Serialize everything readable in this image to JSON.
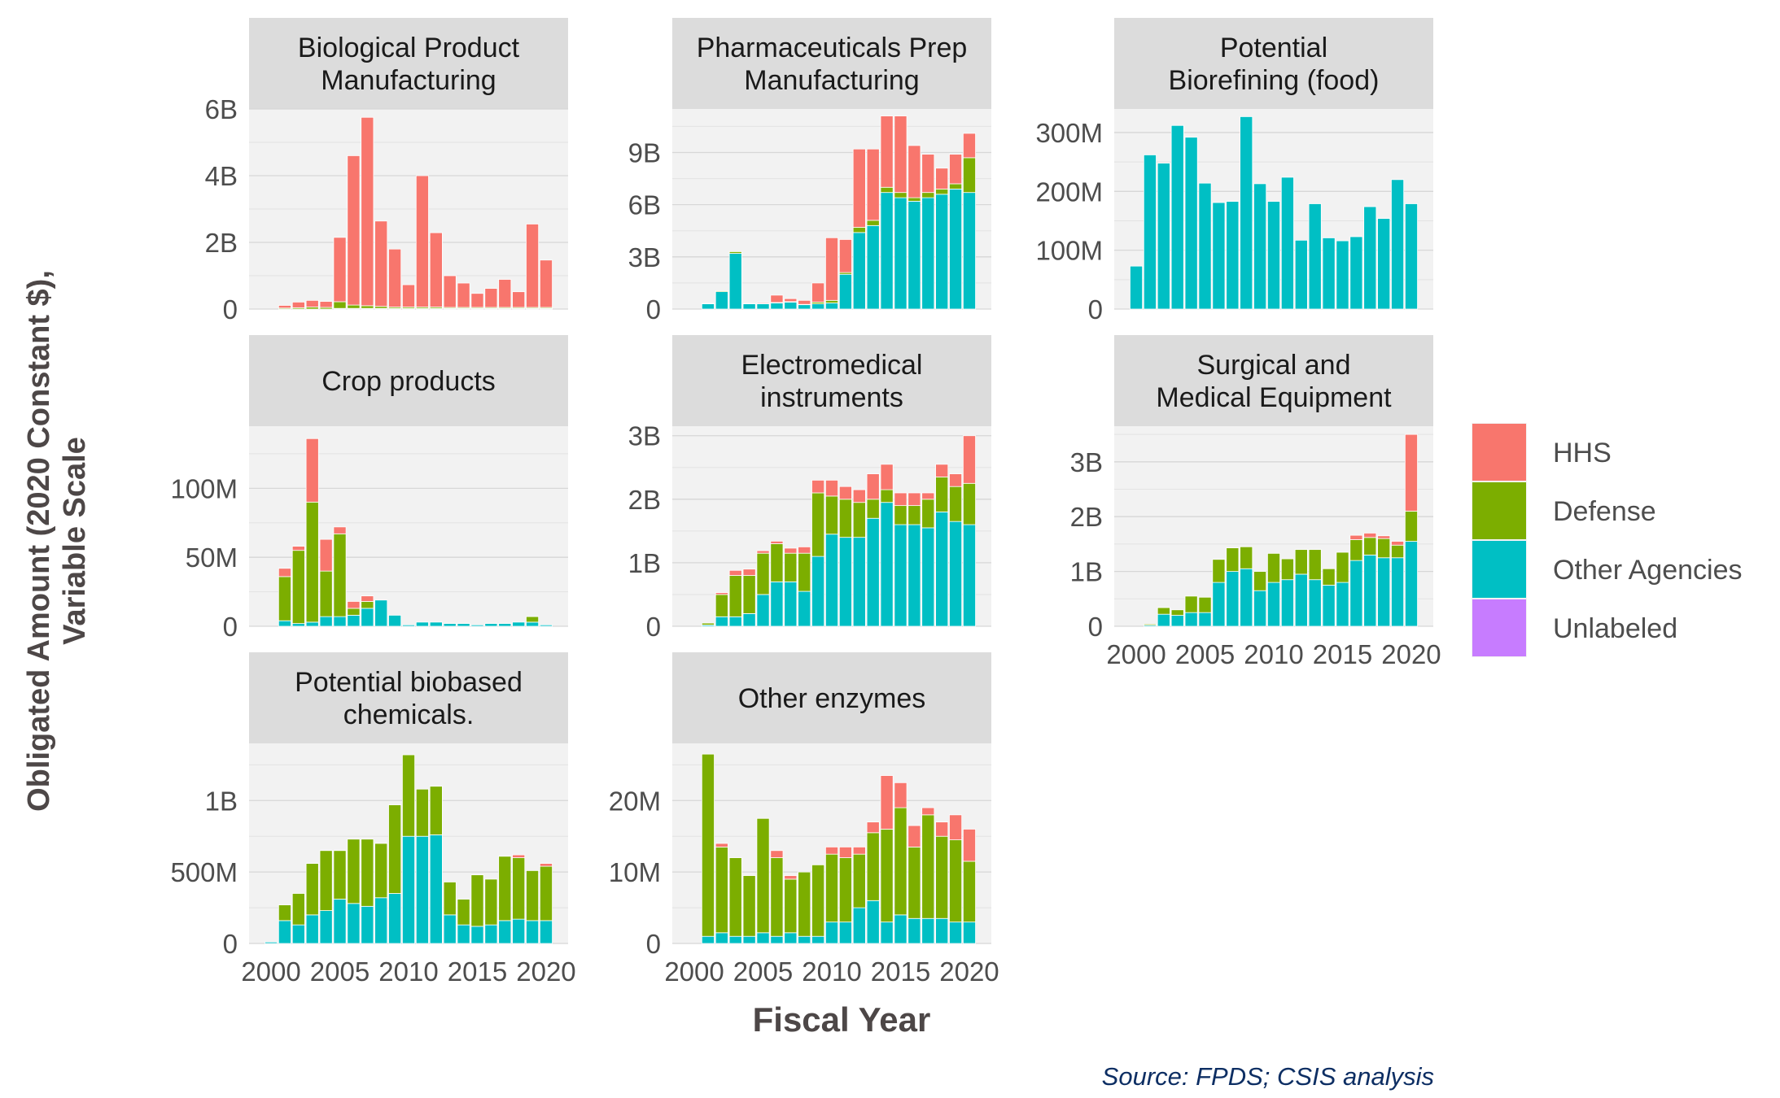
{
  "figure": {
    "ylabel_line1": "Obligated Amount (2020 Constant $),",
    "ylabel_line2": "Variable Scale",
    "xlabel": "Fiscal Year",
    "source": "Source: FPDS; CSIS analysis"
  },
  "legend": {
    "items": [
      {
        "name": "HHS",
        "color": "#F8766D"
      },
      {
        "name": "Defense",
        "color": "#7CAE00"
      },
      {
        "name": "Other Agencies",
        "color": "#00BFC4"
      },
      {
        "name": "Unlabeled",
        "color": "#C77CFF"
      }
    ]
  },
  "chart_data": [
    {
      "type": "bar",
      "stacked": true,
      "title": "Biological Product Manufacturing",
      "title_lines": [
        "Biological Product",
        "Manufacturing"
      ],
      "x": [
        2000,
        2001,
        2002,
        2003,
        2004,
        2005,
        2006,
        2007,
        2008,
        2009,
        2010,
        2011,
        2012,
        2013,
        2014,
        2015,
        2016,
        2017,
        2018,
        2019,
        2020
      ],
      "xlim": [
        1998.4,
        2021.6
      ],
      "ylim": [
        0,
        6000000000
      ],
      "ytick_values": [
        0,
        2000000000,
        4000000000,
        6000000000
      ],
      "ytick_labels": [
        "0",
        "2B",
        "4B",
        "6B"
      ],
      "show_x_ticks": false,
      "series": [
        {
          "name": "Other Agencies",
          "values": [
            0,
            0,
            0,
            0,
            0,
            20000000,
            20000000,
            20000000,
            20000000,
            20000000,
            20000000,
            20000000,
            20000000,
            20000000,
            20000000,
            20000000,
            20000000,
            20000000,
            20000000,
            20000000,
            20000000
          ]
        },
        {
          "name": "Defense",
          "values": [
            0,
            30000000,
            40000000,
            60000000,
            50000000,
            200000000,
            100000000,
            80000000,
            60000000,
            40000000,
            40000000,
            40000000,
            40000000,
            30000000,
            30000000,
            30000000,
            30000000,
            30000000,
            30000000,
            30000000,
            30000000
          ]
        },
        {
          "name": "HHS",
          "values": [
            0,
            80000000,
            170000000,
            200000000,
            180000000,
            1930000000,
            4480000000,
            5650000000,
            2560000000,
            1740000000,
            670000000,
            3940000000,
            2230000000,
            950000000,
            730000000,
            420000000,
            570000000,
            840000000,
            470000000,
            2500000000,
            1420000000
          ]
        }
      ]
    },
    {
      "type": "bar",
      "stacked": true,
      "title": "Pharmaceuticals Prep Manufacturing",
      "title_lines": [
        "Pharmaceuticals Prep",
        "Manufacturing"
      ],
      "x": [
        2000,
        2001,
        2002,
        2003,
        2004,
        2005,
        2006,
        2007,
        2008,
        2009,
        2010,
        2011,
        2012,
        2013,
        2014,
        2015,
        2016,
        2017,
        2018,
        2019,
        2020
      ],
      "xlim": [
        1998.4,
        2021.6
      ],
      "ylim": [
        0,
        11500000000
      ],
      "ytick_values": [
        0,
        3000000000,
        6000000000,
        9000000000
      ],
      "ytick_labels": [
        "0",
        "3B",
        "6B",
        "9B"
      ],
      "show_x_ticks": false,
      "series": [
        {
          "name": "Other Agencies",
          "values": [
            0,
            300000000,
            1000000000,
            3200000000,
            300000000,
            300000000,
            350000000,
            400000000,
            250000000,
            300000000,
            350000000,
            2000000000,
            4400000000,
            4800000000,
            6700000000,
            6400000000,
            6200000000,
            6400000000,
            6600000000,
            6900000000,
            6700000000
          ]
        },
        {
          "name": "Defense",
          "values": [
            0,
            30000000,
            50000000,
            100000000,
            20000000,
            20000000,
            30000000,
            30000000,
            20000000,
            100000000,
            150000000,
            100000000,
            300000000,
            300000000,
            300000000,
            300000000,
            200000000,
            300000000,
            300000000,
            300000000,
            2000000000
          ]
        },
        {
          "name": "HHS",
          "values": [
            0,
            0,
            0,
            0,
            0,
            50000000,
            420000000,
            170000000,
            230000000,
            1100000000,
            3600000000,
            1900000000,
            4500000000,
            4100000000,
            4100000000,
            4400000000,
            3000000000,
            2200000000,
            1200000000,
            1700000000,
            1400000000
          ]
        }
      ]
    },
    {
      "type": "bar",
      "stacked": true,
      "title": "Potential Biorefining (food)",
      "title_lines": [
        "Potential",
        "Biorefining (food)"
      ],
      "x": [
        2000,
        2001,
        2002,
        2003,
        2004,
        2005,
        2006,
        2007,
        2008,
        2009,
        2010,
        2011,
        2012,
        2013,
        2014,
        2015,
        2016,
        2017,
        2018,
        2019,
        2020
      ],
      "xlim": [
        1998.4,
        2021.6
      ],
      "ylim": [
        0,
        340000000
      ],
      "ytick_values": [
        0,
        100000000,
        200000000,
        300000000
      ],
      "ytick_labels": [
        "0",
        "100M",
        "200M",
        "300M"
      ],
      "show_x_ticks": false,
      "series": [
        {
          "name": "Other Agencies",
          "values": [
            73000000,
            262000000,
            248000000,
            312000000,
            292000000,
            214000000,
            181000000,
            183000000,
            327000000,
            213000000,
            183000000,
            224000000,
            117000000,
            179000000,
            121000000,
            116000000,
            123000000,
            174000000,
            154000000,
            220000000,
            179000000
          ]
        }
      ]
    },
    {
      "type": "bar",
      "stacked": true,
      "title": "Crop products",
      "title_lines": [
        "Crop products"
      ],
      "x": [
        2000,
        2001,
        2002,
        2003,
        2004,
        2005,
        2006,
        2007,
        2008,
        2009,
        2010,
        2011,
        2012,
        2013,
        2014,
        2015,
        2016,
        2017,
        2018,
        2019,
        2020
      ],
      "xlim": [
        1998.4,
        2021.6
      ],
      "ylim": [
        0,
        145000000
      ],
      "ytick_values": [
        0,
        50000000,
        100000000
      ],
      "ytick_labels": [
        "0",
        "50M",
        "100M"
      ],
      "show_x_ticks": false,
      "series": [
        {
          "name": "Other Agencies",
          "values": [
            0,
            4000000,
            2000000,
            3000000,
            7000000,
            7000000,
            8000000,
            13000000,
            19000000,
            8000000,
            1000000,
            3000000,
            3000000,
            2000000,
            2000000,
            1000000,
            2000000,
            2000000,
            3000000,
            3000000,
            1000000
          ]
        },
        {
          "name": "Defense",
          "values": [
            0,
            32000000,
            53000000,
            87000000,
            33000000,
            60000000,
            5000000,
            5000000,
            0,
            0,
            0,
            0,
            0,
            0,
            0,
            0,
            0,
            0,
            0,
            4000000,
            0
          ]
        },
        {
          "name": "HHS",
          "values": [
            0,
            6000000,
            3000000,
            46000000,
            23000000,
            5000000,
            5000000,
            4000000,
            0,
            0,
            0,
            0,
            0,
            0,
            0,
            0,
            0,
            0,
            0,
            0,
            0
          ]
        }
      ]
    },
    {
      "type": "bar",
      "stacked": true,
      "title": "Electromedical instruments",
      "title_lines": [
        "Electromedical",
        "instruments"
      ],
      "x": [
        2000,
        2001,
        2002,
        2003,
        2004,
        2005,
        2006,
        2007,
        2008,
        2009,
        2010,
        2011,
        2012,
        2013,
        2014,
        2015,
        2016,
        2017,
        2018,
        2019,
        2020
      ],
      "xlim": [
        1998.4,
        2021.6
      ],
      "ylim": [
        0,
        3150000000
      ],
      "ytick_values": [
        0,
        1000000000,
        2000000000,
        3000000000
      ],
      "ytick_labels": [
        "0",
        "1B",
        "2B",
        "3B"
      ],
      "show_x_ticks": false,
      "series": [
        {
          "name": "Other Agencies",
          "values": [
            0,
            20000000,
            150000000,
            150000000,
            200000000,
            500000000,
            700000000,
            700000000,
            550000000,
            1100000000,
            1450000000,
            1400000000,
            1400000000,
            1700000000,
            1950000000,
            1600000000,
            1600000000,
            1550000000,
            1800000000,
            1650000000,
            1600000000
          ]
        },
        {
          "name": "Defense",
          "values": [
            0,
            30000000,
            350000000,
            650000000,
            600000000,
            650000000,
            600000000,
            450000000,
            600000000,
            1000000000,
            600000000,
            600000000,
            550000000,
            300000000,
            200000000,
            300000000,
            300000000,
            450000000,
            550000000,
            550000000,
            650000000
          ]
        },
        {
          "name": "HHS",
          "values": [
            0,
            0,
            30000000,
            80000000,
            100000000,
            40000000,
            40000000,
            80000000,
            100000000,
            200000000,
            250000000,
            200000000,
            200000000,
            400000000,
            400000000,
            200000000,
            200000000,
            100000000,
            200000000,
            200000000,
            750000000
          ]
        }
      ]
    },
    {
      "type": "bar",
      "stacked": true,
      "title": "Surgical and Medical Equipment",
      "title_lines": [
        "Surgical and",
        "Medical Equipment"
      ],
      "x": [
        2000,
        2001,
        2002,
        2003,
        2004,
        2005,
        2006,
        2007,
        2008,
        2009,
        2010,
        2011,
        2012,
        2013,
        2014,
        2015,
        2016,
        2017,
        2018,
        2019,
        2020
      ],
      "xlim": [
        1998.4,
        2021.6
      ],
      "ylim": [
        0,
        3650000000
      ],
      "ytick_values": [
        0,
        1000000000,
        2000000000,
        3000000000
      ],
      "ytick_labels": [
        "0",
        "1B",
        "2B",
        "3B"
      ],
      "xtick_values": [
        2000,
        2005,
        2010,
        2015,
        2020
      ],
      "xtick_labels": [
        "2000",
        "2005",
        "2010",
        "2015",
        "2020"
      ],
      "show_x_ticks": true,
      "series": [
        {
          "name": "Other Agencies",
          "values": [
            0,
            20000000,
            220000000,
            200000000,
            250000000,
            250000000,
            800000000,
            1000000000,
            1050000000,
            650000000,
            800000000,
            850000000,
            950000000,
            850000000,
            750000000,
            800000000,
            1200000000,
            1300000000,
            1250000000,
            1250000000,
            1550000000
          ]
        },
        {
          "name": "Defense",
          "values": [
            0,
            20000000,
            120000000,
            100000000,
            300000000,
            280000000,
            420000000,
            430000000,
            400000000,
            350000000,
            530000000,
            380000000,
            450000000,
            550000000,
            300000000,
            550000000,
            380000000,
            320000000,
            350000000,
            230000000,
            550000000
          ]
        },
        {
          "name": "HHS",
          "values": [
            0,
            0,
            0,
            0,
            0,
            0,
            0,
            0,
            0,
            0,
            0,
            0,
            0,
            0,
            0,
            0,
            80000000,
            80000000,
            50000000,
            70000000,
            1400000000
          ]
        }
      ]
    },
    {
      "type": "bar",
      "stacked": true,
      "title": "Potential biobased chemicals.",
      "title_lines": [
        "Potential biobased",
        "chemicals."
      ],
      "x": [
        2000,
        2001,
        2002,
        2003,
        2004,
        2005,
        2006,
        2007,
        2008,
        2009,
        2010,
        2011,
        2012,
        2013,
        2014,
        2015,
        2016,
        2017,
        2018,
        2019,
        2020
      ],
      "xlim": [
        1998.4,
        2021.6
      ],
      "ylim": [
        0,
        1400000000
      ],
      "ytick_values": [
        0,
        500000000,
        1000000000
      ],
      "ytick_labels": [
        "0",
        "500M",
        "1B"
      ],
      "xtick_values": [
        2000,
        2005,
        2010,
        2015,
        2020
      ],
      "xtick_labels": [
        "2000",
        "2005",
        "2010",
        "2015",
        "2020"
      ],
      "show_x_ticks": true,
      "series": [
        {
          "name": "Other Agencies",
          "values": [
            10000000,
            160000000,
            130000000,
            200000000,
            230000000,
            310000000,
            280000000,
            260000000,
            320000000,
            350000000,
            750000000,
            750000000,
            760000000,
            200000000,
            130000000,
            120000000,
            130000000,
            160000000,
            170000000,
            160000000,
            160000000
          ]
        },
        {
          "name": "Defense",
          "values": [
            0,
            110000000,
            220000000,
            360000000,
            420000000,
            340000000,
            450000000,
            470000000,
            380000000,
            620000000,
            570000000,
            330000000,
            340000000,
            230000000,
            180000000,
            360000000,
            320000000,
            450000000,
            430000000,
            350000000,
            380000000
          ]
        },
        {
          "name": "HHS",
          "values": [
            0,
            0,
            0,
            0,
            0,
            0,
            0,
            0,
            0,
            0,
            0,
            0,
            0,
            0,
            0,
            0,
            0,
            0,
            20000000,
            0,
            20000000
          ]
        }
      ]
    },
    {
      "type": "bar",
      "stacked": true,
      "title": "Other enzymes",
      "title_lines": [
        "Other enzymes"
      ],
      "x": [
        2000,
        2001,
        2002,
        2003,
        2004,
        2005,
        2006,
        2007,
        2008,
        2009,
        2010,
        2011,
        2012,
        2013,
        2014,
        2015,
        2016,
        2017,
        2018,
        2019,
        2020
      ],
      "xlim": [
        1998.4,
        2021.6
      ],
      "ylim": [
        0,
        28000000
      ],
      "ytick_values": [
        0,
        10000000,
        20000000
      ],
      "ytick_labels": [
        "0",
        "10M",
        "20M"
      ],
      "xtick_values": [
        2000,
        2005,
        2010,
        2015,
        2020
      ],
      "xtick_labels": [
        "2000",
        "2005",
        "2010",
        "2015",
        "2020"
      ],
      "show_x_ticks": true,
      "series": [
        {
          "name": "Other Agencies",
          "values": [
            0,
            1000000,
            1500000,
            1000000,
            1000000,
            1500000,
            1000000,
            1500000,
            1000000,
            1000000,
            3000000,
            3000000,
            5000000,
            6000000,
            3000000,
            4000000,
            3500000,
            3500000,
            3500000,
            3000000,
            3000000
          ]
        },
        {
          "name": "Defense",
          "values": [
            0,
            25500000,
            12000000,
            11000000,
            8500000,
            16000000,
            11000000,
            7500000,
            9000000,
            10000000,
            9500000,
            9000000,
            7500000,
            9500000,
            13000000,
            15000000,
            10000000,
            14500000,
            11500000,
            11500000,
            8500000
          ]
        },
        {
          "name": "HHS",
          "values": [
            0,
            0,
            500000,
            0,
            0,
            0,
            1000000,
            500000,
            0,
            0,
            1000000,
            1500000,
            1000000,
            1500000,
            7500000,
            3500000,
            3000000,
            1000000,
            2000000,
            3500000,
            4500000
          ]
        }
      ]
    }
  ]
}
